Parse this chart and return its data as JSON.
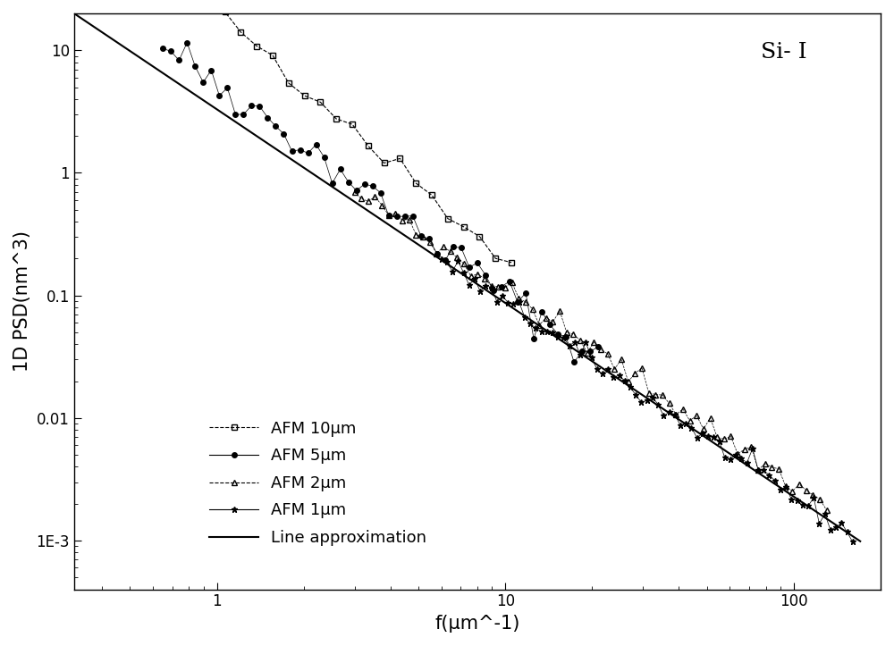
{
  "title": "Si- I",
  "xlabel": "f(μm^-1)",
  "ylabel": "1D PSD(nm^3)",
  "xlim": [
    0.32,
    200
  ],
  "ylim": [
    0.0004,
    20
  ],
  "background_color": "#ffffff",
  "line_approx": {
    "label": "Line approximation",
    "color": "#000000",
    "linestyle": "solid",
    "linewidth": 1.5,
    "A": 3.3,
    "slope": -1.58
  },
  "series": {
    "afm10": {
      "label": "AFM 10μm",
      "color": "#000000",
      "linestyle": "dashed",
      "marker": "s",
      "markersize": 4,
      "fillstyle": "none",
      "A": 22.0,
      "slope": -2.05,
      "x_start": 0.34,
      "x_end": 10.5,
      "n_points": 28
    },
    "afm5": {
      "label": "AFM 5μm",
      "color": "#000000",
      "linestyle": "solid",
      "marker": "o",
      "markersize": 4,
      "fillstyle": "full",
      "A": 5.5,
      "slope": -1.72,
      "x_start": 0.65,
      "x_end": 21.0,
      "n_points": 55
    },
    "afm2": {
      "label": "AFM 2μm",
      "color": "#000000",
      "linestyle": "dashed",
      "marker": "^",
      "markersize": 4,
      "fillstyle": "none",
      "A": 4.2,
      "slope": -1.58,
      "x_start": 3.0,
      "x_end": 130.0,
      "n_points": 70
    },
    "afm1": {
      "label": "AFM 1μm",
      "color": "#000000",
      "linestyle": "solid",
      "marker": "*",
      "markersize": 5,
      "fillstyle": "full",
      "A": 3.3,
      "slope": -1.58,
      "x_start": 6.0,
      "x_end": 160.0,
      "n_points": 75
    }
  }
}
